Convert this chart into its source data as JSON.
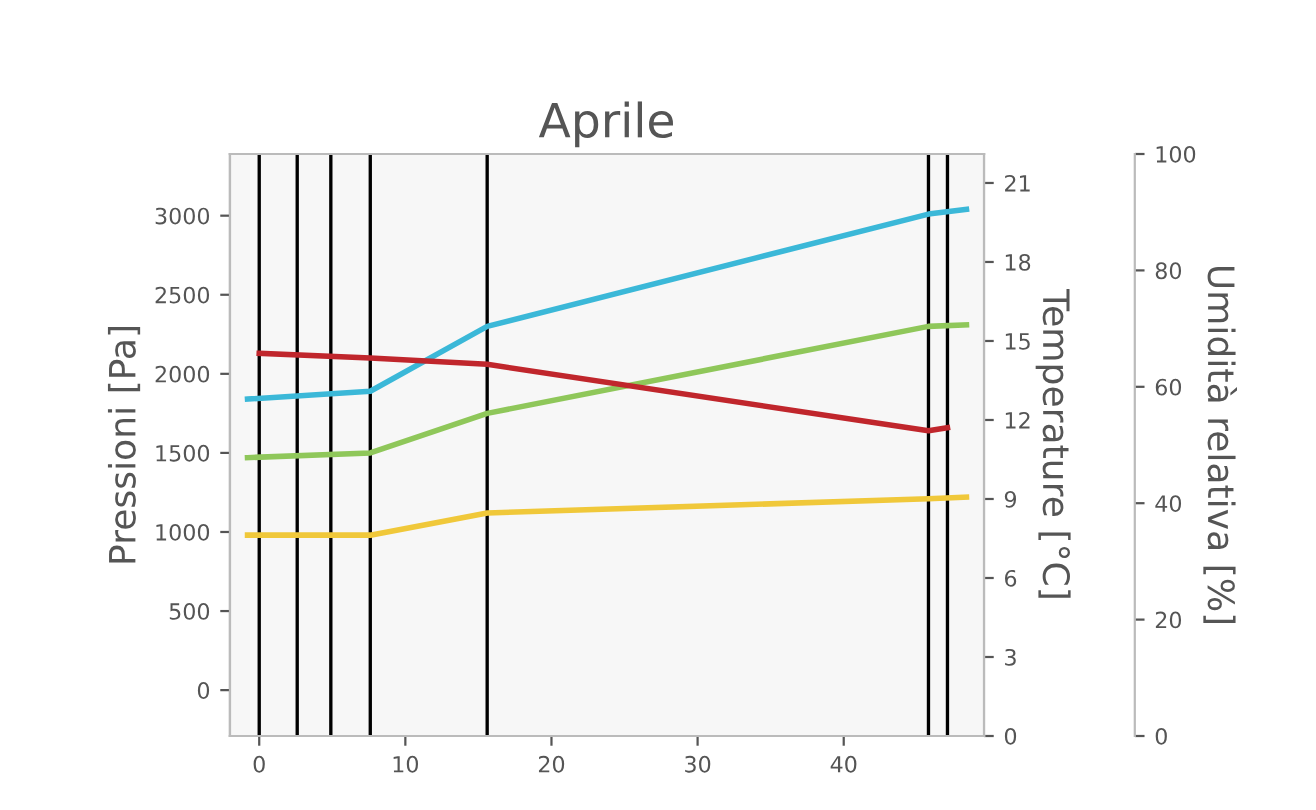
{
  "chart_data": {
    "type": "line",
    "title": "Aprile",
    "ylabel": "Pressioni [Pa]",
    "y2label": "Temperature [°C]",
    "y3label": "Umidità relativa [%]",
    "xlim": [
      -2,
      49.6
    ],
    "xticks": [
      0,
      10,
      20,
      30,
      40
    ],
    "ylim": [
      -290,
      3390
    ],
    "yticks": [
      0,
      500,
      1000,
      1500,
      2000,
      2500,
      3000
    ],
    "y2lim": [
      0,
      22.1
    ],
    "y2ticks": [
      0,
      3,
      6,
      9,
      12,
      15,
      18,
      21
    ],
    "y3lim": [
      0,
      100
    ],
    "y3ticks": [
      0,
      20,
      40,
      60,
      80,
      100
    ],
    "grid": false,
    "legend": false,
    "marker": "none",
    "line_style": "solid",
    "series": [
      {
        "color": "#3bb8d8",
        "x": [
          -0.8,
          7.6,
          15.6,
          45.8,
          48.4
        ],
        "values": [
          1840,
          1890,
          2300,
          3010,
          3040
        ]
      },
      {
        "color": "#8fc75a",
        "x": [
          -0.8,
          7.6,
          15.6,
          45.8,
          48.4
        ],
        "values": [
          1470,
          1500,
          1750,
          2300,
          2310
        ]
      },
      {
        "color": "#c0262c",
        "x": [
          0,
          7.6,
          15.6,
          45.8,
          47.1
        ],
        "values": [
          2130,
          2100,
          2060,
          1640,
          1660
        ]
      },
      {
        "color": "#f0c83a",
        "x": [
          -0.8,
          7.6,
          15.6,
          45.8,
          48.4
        ],
        "values": [
          980,
          980,
          1120,
          1210,
          1220
        ]
      }
    ],
    "ref_lines": [
      {
        "axis": "x",
        "value": 0,
        "color": "#000000"
      },
      {
        "axis": "x",
        "value": 2.6,
        "color": "#000000"
      },
      {
        "axis": "x",
        "value": 4.9,
        "color": "#000000"
      },
      {
        "axis": "x",
        "value": 7.6,
        "color": "#000000"
      },
      {
        "axis": "x",
        "value": 15.6,
        "color": "#000000"
      },
      {
        "axis": "x",
        "value": 45.8,
        "color": "#000000"
      },
      {
        "axis": "x",
        "value": 47.1,
        "color": "#000000"
      }
    ]
  }
}
